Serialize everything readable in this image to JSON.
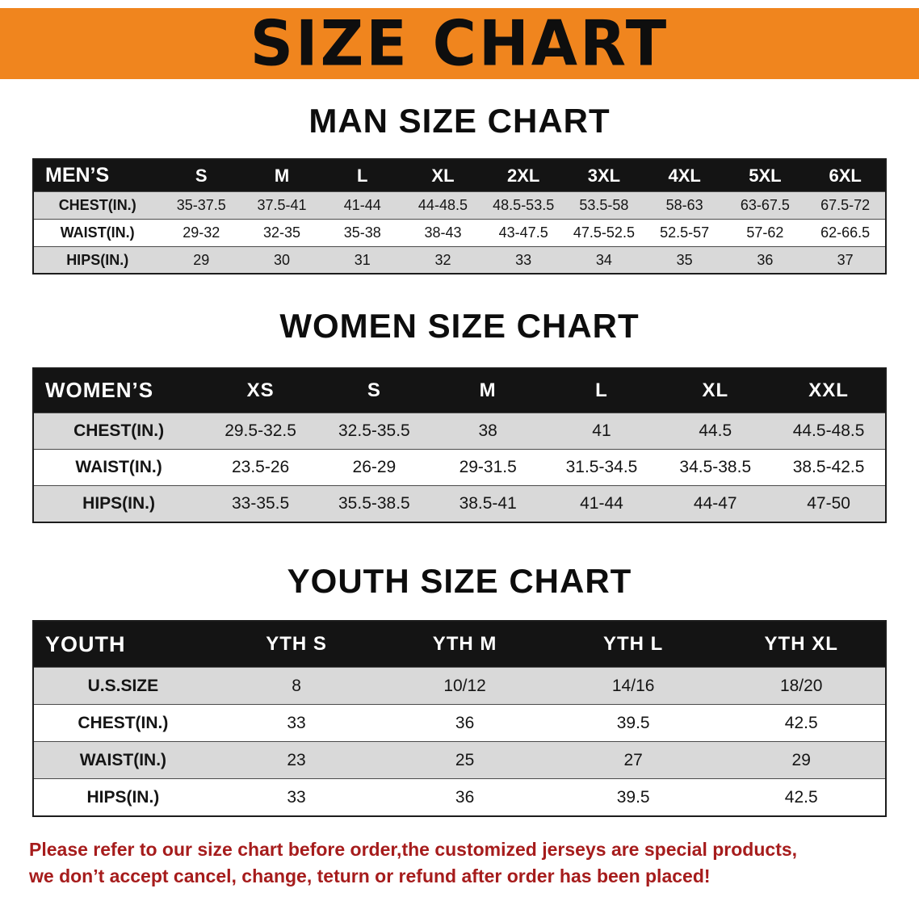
{
  "banner": {
    "title": "SIZE CHART"
  },
  "colors": {
    "banner_bg": "#F0851E",
    "header_bg": "#141414",
    "row_alt": "#D9D9D9",
    "note_red": "#A61C1C"
  },
  "sections": [
    {
      "heading": "MAN SIZE CHART",
      "table": {
        "header": [
          "MEN’S",
          "S",
          "M",
          "L",
          "XL",
          "2XL",
          "3XL",
          "4XL",
          "5XL",
          "6XL"
        ],
        "rows": [
          [
            "CHEST(IN.)",
            "35-37.5",
            "37.5-41",
            "41-44",
            "44-48.5",
            "48.5-53.5",
            "53.5-58",
            "58-63",
            "63-67.5",
            "67.5-72"
          ],
          [
            "WAIST(IN.)",
            "29-32",
            "32-35",
            "35-38",
            "38-43",
            "43-47.5",
            "47.5-52.5",
            "52.5-57",
            "57-62",
            "62-66.5"
          ],
          [
            "HIPS(IN.)",
            "29",
            "30",
            "31",
            "32",
            "33",
            "34",
            "35",
            "36",
            "37"
          ]
        ]
      }
    },
    {
      "heading": "WOMEN SIZE CHART",
      "table": {
        "header": [
          "WOMEN’S",
          "XS",
          "S",
          "M",
          "L",
          "XL",
          "XXL"
        ],
        "rows": [
          [
            "CHEST(IN.)",
            "29.5-32.5",
            "32.5-35.5",
            "38",
            "41",
            "44.5",
            "44.5-48.5"
          ],
          [
            "WAIST(IN.)",
            "23.5-26",
            "26-29",
            "29-31.5",
            "31.5-34.5",
            "34.5-38.5",
            "38.5-42.5"
          ],
          [
            "HIPS(IN.)",
            "33-35.5",
            "35.5-38.5",
            "38.5-41",
            "41-44",
            "44-47",
            "47-50"
          ]
        ]
      }
    },
    {
      "heading": "YOUTH SIZE CHART",
      "table": {
        "header": [
          "YOUTH",
          "YTH S",
          "YTH M",
          "YTH L",
          "YTH XL"
        ],
        "rows": [
          [
            "U.S.SIZE",
            "8",
            "10/12",
            "14/16",
            "18/20"
          ],
          [
            "CHEST(IN.)",
            "33",
            "36",
            "39.5",
            "42.5"
          ],
          [
            "WAIST(IN.)",
            "23",
            "25",
            "27",
            "29"
          ],
          [
            "HIPS(IN.)",
            "33",
            "36",
            "39.5",
            "42.5"
          ]
        ]
      }
    }
  ],
  "note": {
    "lines": [
      "Please refer to our size chart before order,the customized jerseys are special products,",
      "we don’t accept cancel, change, teturn or refund after order has been placed!"
    ]
  }
}
